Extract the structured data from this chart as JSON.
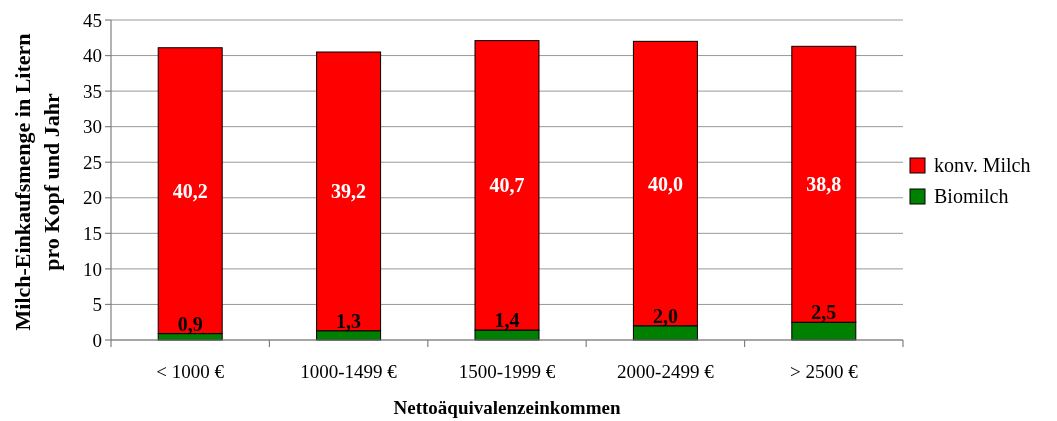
{
  "chart_data": {
    "type": "bar",
    "stacked": true,
    "xlabel": "Nettoäquivalenzeinkommen",
    "ylabel": "Milch-Einkaufsmenge in Litern\npro Kopf und Jahr",
    "categories": [
      "< 1000 €",
      "1000-1499 €",
      "1500-1999 €",
      "2000-2499 €",
      "> 2500 €"
    ],
    "series": [
      {
        "name": "Biomilch",
        "color": "#008000",
        "values": [
          0.9,
          1.3,
          1.4,
          2.0,
          2.5
        ],
        "value_labels": [
          "0,9",
          "1,3",
          "1,4",
          "2,0",
          "2,5"
        ]
      },
      {
        "name": "konv. Milch",
        "color": "#ff0000",
        "values": [
          40.2,
          39.2,
          40.7,
          40.0,
          38.8
        ],
        "value_labels": [
          "40,2",
          "39,2",
          "40,7",
          "40,0",
          "38,8"
        ]
      }
    ],
    "ylim": [
      0,
      45
    ],
    "yticks": [
      0,
      5,
      10,
      15,
      20,
      25,
      30,
      35,
      40,
      45
    ],
    "grid": "y",
    "legend": "right"
  }
}
